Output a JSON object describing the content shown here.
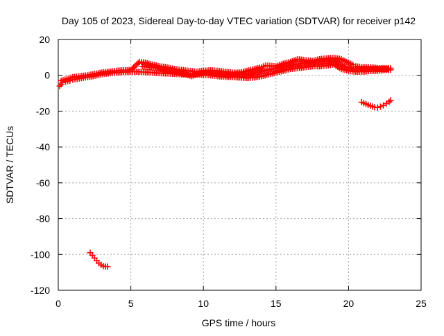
{
  "chart_data": {
    "type": "scatter",
    "title": "Day 105 of 2023, Sidereal Day-to-day VTEC variation (SDTVAR) for receiver p142",
    "xlabel": "GPS time / hours",
    "ylabel": "SDTVAR / TECUs",
    "xlim": [
      0,
      25
    ],
    "ylim": [
      -120,
      20
    ],
    "x_ticks": [
      0,
      5,
      10,
      15,
      20,
      25
    ],
    "y_ticks": [
      -120,
      -100,
      -80,
      -60,
      -40,
      -20,
      0,
      20
    ],
    "grid": true,
    "marker": "+",
    "series": [
      {
        "name": "main-band-lower",
        "color": "#ff0000",
        "points": [
          [
            0.1,
            -6
          ],
          [
            0.3,
            -4
          ],
          [
            0.5,
            -3.5
          ],
          [
            0.8,
            -3
          ],
          [
            1.0,
            -2.5
          ],
          [
            1.3,
            -2
          ],
          [
            1.6,
            -1.5
          ],
          [
            2.0,
            -1
          ],
          [
            2.4,
            -0.5
          ],
          [
            2.8,
            0.2
          ],
          [
            3.2,
            0.8
          ],
          [
            3.6,
            1.2
          ],
          [
            4.0,
            1.5
          ],
          [
            4.5,
            1.8
          ],
          [
            5.0,
            2.0
          ],
          [
            5.5,
            2.0
          ],
          [
            6.0,
            1.8
          ],
          [
            6.5,
            1.5
          ],
          [
            7.0,
            1.2
          ],
          [
            7.5,
            1.0
          ],
          [
            8.0,
            0.8
          ],
          [
            8.5,
            0.5
          ],
          [
            9.0,
            0.5
          ],
          [
            9.5,
            0.5
          ],
          [
            10.0,
            0.3
          ],
          [
            10.5,
            0.0
          ],
          [
            11.0,
            -0.5
          ],
          [
            11.5,
            -0.8
          ],
          [
            12.0,
            -1.0
          ],
          [
            12.5,
            -1.2
          ],
          [
            13.0,
            -1.5
          ],
          [
            13.5,
            -1.2
          ],
          [
            14.0,
            -0.5
          ],
          [
            14.5,
            0.5
          ],
          [
            15.0,
            1.5
          ],
          [
            15.5,
            2.5
          ],
          [
            16.0,
            3.5
          ],
          [
            16.5,
            4.0
          ],
          [
            17.0,
            4.5
          ],
          [
            17.5,
            5.0
          ],
          [
            18.0,
            5.0
          ],
          [
            18.5,
            5.5
          ],
          [
            19.0,
            6.0
          ],
          [
            19.5,
            3.5
          ],
          [
            20.0,
            2.5
          ],
          [
            20.5,
            2.0
          ],
          [
            21.0,
            2.0
          ],
          [
            21.5,
            2.5
          ],
          [
            22.0,
            2.5
          ],
          [
            22.5,
            3.0
          ],
          [
            22.9,
            3.0
          ]
        ]
      },
      {
        "name": "main-band-upper",
        "color": "#ff0000",
        "points": [
          [
            0.2,
            -3
          ],
          [
            0.6,
            -2
          ],
          [
            1.0,
            -1
          ],
          [
            1.5,
            -0.5
          ],
          [
            2.0,
            0.0
          ],
          [
            2.5,
            0.8
          ],
          [
            3.0,
            1.5
          ],
          [
            3.5,
            2.0
          ],
          [
            4.0,
            2.5
          ],
          [
            4.5,
            2.8
          ],
          [
            5.0,
            3.0
          ],
          [
            5.6,
            7.5
          ],
          [
            6.0,
            7.0
          ],
          [
            6.5,
            6.0
          ],
          [
            7.0,
            5.0
          ],
          [
            7.5,
            4.5
          ],
          [
            8.0,
            3.5
          ],
          [
            8.5,
            3.0
          ],
          [
            9.0,
            2.5
          ],
          [
            9.5,
            2.0
          ],
          [
            10.0,
            2.5
          ],
          [
            10.5,
            2.8
          ],
          [
            11.0,
            2.5
          ],
          [
            11.5,
            2.0
          ],
          [
            12.0,
            1.5
          ],
          [
            12.5,
            1.5
          ],
          [
            13.0,
            2.5
          ],
          [
            13.5,
            3.5
          ],
          [
            14.0,
            4.5
          ],
          [
            14.3,
            5.5
          ],
          [
            15.0,
            5.0
          ],
          [
            15.5,
            6.5
          ],
          [
            16.0,
            7.5
          ],
          [
            16.5,
            9.0
          ],
          [
            17.0,
            8.5
          ],
          [
            17.5,
            8.0
          ],
          [
            18.0,
            9.0
          ],
          [
            18.5,
            9.5
          ],
          [
            19.0,
            9.8
          ],
          [
            19.5,
            9.0
          ],
          [
            20.0,
            7.0
          ],
          [
            20.3,
            6.0
          ],
          [
            20.5,
            5.0
          ],
          [
            21.0,
            4.5
          ],
          [
            21.5,
            4.5
          ],
          [
            22.0,
            4.0
          ],
          [
            22.5,
            4.0
          ],
          [
            22.9,
            4.0
          ]
        ]
      },
      {
        "name": "main-band-mid",
        "color": "#ff0000",
        "points": [
          [
            5.8,
            5
          ],
          [
            6.3,
            4.5
          ],
          [
            6.8,
            4
          ],
          [
            7.3,
            3
          ],
          [
            7.8,
            2.5
          ],
          [
            8.3,
            1.5
          ],
          [
            8.8,
            0.5
          ],
          [
            9.2,
            -0.5
          ],
          [
            9.7,
            1.0
          ],
          [
            10.2,
            1.5
          ],
          [
            10.7,
            1.0
          ],
          [
            11.2,
            0.5
          ],
          [
            11.7,
            0.0
          ],
          [
            12.2,
            0.5
          ],
          [
            12.7,
            0.5
          ],
          [
            13.2,
            0.5
          ],
          [
            13.7,
            1.5
          ],
          [
            14.2,
            2.5
          ],
          [
            14.7,
            3.5
          ],
          [
            15.2,
            4.0
          ],
          [
            15.7,
            5.0
          ],
          [
            16.2,
            6.0
          ],
          [
            16.7,
            6.5
          ],
          [
            17.2,
            7.0
          ],
          [
            17.7,
            7.0
          ],
          [
            18.2,
            7.5
          ],
          [
            18.7,
            8.0
          ],
          [
            19.2,
            7.5
          ],
          [
            19.7,
            5.0
          ],
          [
            20.2,
            4.0
          ],
          [
            20.7,
            3.5
          ],
          [
            21.2,
            3.5
          ],
          [
            21.7,
            3.5
          ],
          [
            22.2,
            3.5
          ],
          [
            22.7,
            3.5
          ]
        ]
      },
      {
        "name": "negative-arc",
        "color": "#ff0000",
        "points": [
          [
            20.9,
            -15.0
          ],
          [
            21.2,
            -16.0
          ],
          [
            21.5,
            -17.0
          ],
          [
            21.8,
            -17.8
          ],
          [
            22.0,
            -18.0
          ],
          [
            22.2,
            -17.5
          ],
          [
            22.4,
            -16.8
          ],
          [
            22.6,
            -15.8
          ],
          [
            22.8,
            -14.8
          ],
          [
            22.9,
            -14.0
          ]
        ]
      },
      {
        "name": "outlier-arc",
        "color": "#ff0000",
        "points": [
          [
            2.2,
            -99.0
          ],
          [
            2.35,
            -100.5
          ],
          [
            2.5,
            -102.0
          ],
          [
            2.65,
            -103.5
          ],
          [
            2.8,
            -104.8
          ],
          [
            2.95,
            -105.8
          ],
          [
            3.1,
            -106.5
          ],
          [
            3.25,
            -106.8
          ],
          [
            3.4,
            -106.8
          ]
        ]
      }
    ]
  }
}
